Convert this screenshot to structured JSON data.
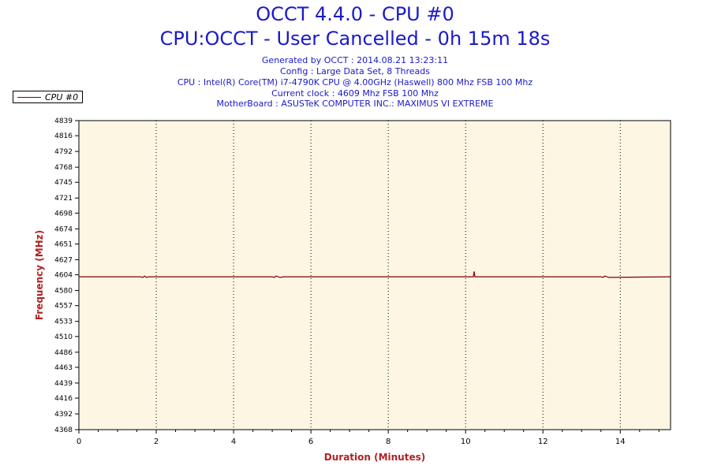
{
  "header": {
    "title": "OCCT 4.4.0 - CPU #0",
    "subtitle": "CPU:OCCT - User Cancelled - 0h 15m 18s",
    "info_lines": [
      "Generated by OCCT : 2014.08.21 13:23:11",
      "Config : Large Data Set, 8 Threads",
      "CPU : Intel(R) Core(TM) i7-4790K CPU @ 4.00GHz (Haswell) 800 Mhz FSB 100 Mhz",
      "Current clock : 4609 Mhz FSB 100 Mhz",
      "MotherBoard : ASUSTeK COMPUTER INC.: MAXIMUS VI EXTREME"
    ]
  },
  "legend": {
    "label": "CPU #0"
  },
  "colors": {
    "series": "#800000",
    "plot_bg": "#fdf6e3",
    "axis_label": "#b22222",
    "title": "#1a1ac8"
  },
  "chart_data": {
    "type": "line",
    "xlabel": "Duration (Minutes)",
    "ylabel": "Frequency (MHz)",
    "xlim": [
      0,
      15.3
    ],
    "ylim": [
      4368,
      4839
    ],
    "x_ticks": [
      0,
      2,
      4,
      6,
      8,
      10,
      12,
      14
    ],
    "y_ticks": [
      4368,
      4392,
      4416,
      4439,
      4463,
      4486,
      4510,
      4533,
      4557,
      4580,
      4604,
      4627,
      4651,
      4674,
      4698,
      4721,
      4745,
      4768,
      4792,
      4816,
      4839
    ],
    "grid": "vertical dotted at x ticks",
    "legend_position": "top-left",
    "series": [
      {
        "name": "CPU #0",
        "x": [
          0,
          1.6,
          1.65,
          1.7,
          1.75,
          1.8,
          5.0,
          5.05,
          5.1,
          5.2,
          5.3,
          10.2,
          10.22,
          10.24,
          10.26,
          13.5,
          13.55,
          13.6,
          13.7,
          15.3
        ],
        "y": [
          4601,
          4601,
          4600,
          4602,
          4600,
          4601,
          4601,
          4600,
          4602,
          4600,
          4601,
          4601,
          4609,
          4601,
          4601,
          4601,
          4600,
          4602,
          4600,
          4601
        ]
      }
    ]
  }
}
